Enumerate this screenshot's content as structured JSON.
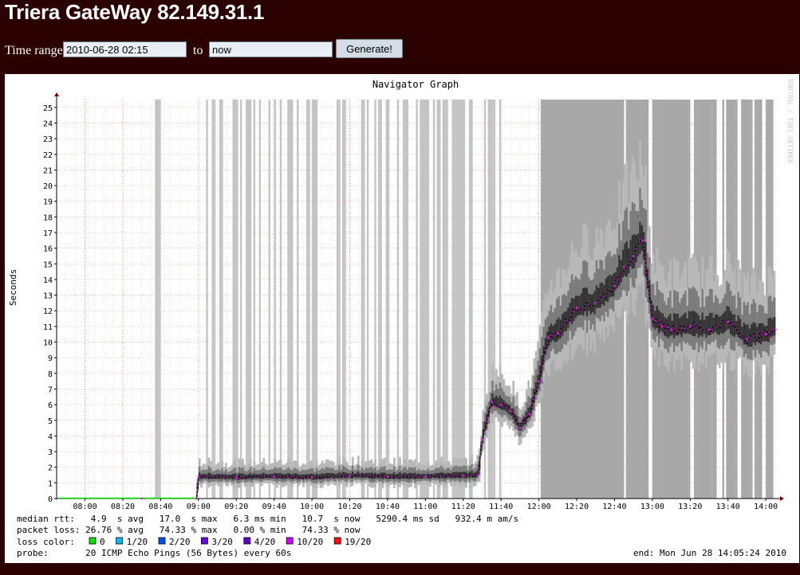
{
  "page": {
    "title": "Triera GateWay 82.149.31.1"
  },
  "form": {
    "time_range_label": "Time range:",
    "start_value": "2010-06-28 02:15",
    "to_label": "to",
    "end_value": "now",
    "generate_label": "Generate!"
  },
  "colors": {
    "background": "#2a0000",
    "median_line": "#e020e0",
    "loss_colors": [
      "#00e000",
      "#00b8ff",
      "#0050ff",
      "#6a00ff",
      "#6000d0",
      "#cc00ff",
      "#ff1010"
    ]
  },
  "chart_data": {
    "type": "line",
    "title": "Navigator Graph",
    "ylabel": "Seconds",
    "watermark": "RRDTOOL / TOBI OETIKER",
    "xlim": [
      "07:45",
      "14:05"
    ],
    "ylim": [
      0,
      25.5
    ],
    "yticks": [
      0,
      1,
      2,
      3,
      4,
      5,
      6,
      7,
      8,
      9,
      10,
      11,
      12,
      13,
      14,
      15,
      16,
      17,
      18,
      19,
      20,
      21,
      22,
      23,
      24,
      25
    ],
    "xticks": [
      "08:00",
      "08:20",
      "08:40",
      "09:00",
      "09:20",
      "09:40",
      "10:00",
      "10:20",
      "10:40",
      "11:00",
      "11:20",
      "11:40",
      "12:00",
      "12:20",
      "12:40",
      "13:00",
      "13:20",
      "13:40",
      "14:00"
    ],
    "grid": true,
    "series": [
      {
        "name": "median rtt",
        "x": [
          "07:45",
          "08:30",
          "08:59",
          "09:00",
          "09:20",
          "09:40",
          "10:00",
          "10:20",
          "10:40",
          "11:00",
          "11:20",
          "11:28",
          "11:30",
          "11:35",
          "11:40",
          "11:45",
          "11:50",
          "11:55",
          "12:00",
          "12:05",
          "12:10",
          "12:20",
          "12:30",
          "12:40",
          "12:45",
          "12:50",
          "12:55",
          "13:00",
          "13:05",
          "13:10",
          "13:20",
          "13:30",
          "13:40",
          "13:50",
          "14:00",
          "14:05"
        ],
        "values": [
          0,
          0,
          0,
          1.4,
          1.35,
          1.4,
          1.35,
          1.45,
          1.4,
          1.4,
          1.45,
          1.5,
          3.8,
          6.2,
          6.0,
          5.6,
          4.5,
          5.4,
          7.5,
          10.3,
          10.6,
          12.2,
          12.5,
          13.6,
          14.8,
          15.5,
          16.5,
          11.5,
          11.0,
          10.8,
          11.0,
          10.8,
          11.3,
          10.2,
          10.5,
          10.8
        ]
      }
    ],
    "legend": {
      "median_rtt": "median rtt:   4.9  s avg   17.0  s max   6.3 ms min   10.7  s now   5290.4 ms sd   932.4 m am/s",
      "packet_loss": "packet loss: 26.76 % avg   74.33 % max   0.00 % min   74.33 % now",
      "loss_color_label": "loss color:",
      "loss_levels": [
        "0",
        "1/20",
        "2/20",
        "3/20",
        "4/20",
        "10/20",
        "19/20"
      ],
      "probe": "probe:       20 ICMP Echo Pings (56 Bytes) every 60s",
      "end": "end: Mon Jun 28 14:05:24 2010"
    }
  }
}
